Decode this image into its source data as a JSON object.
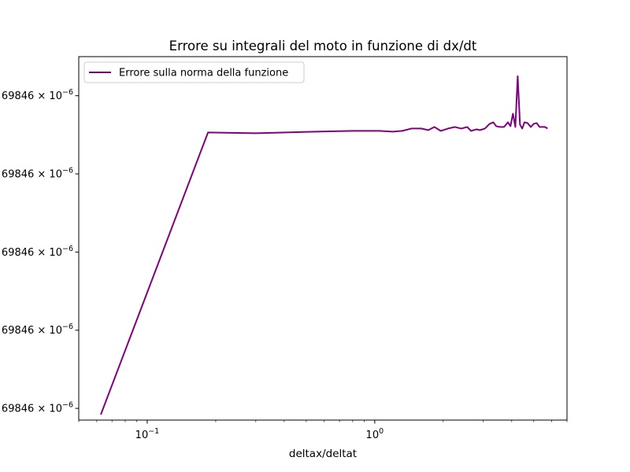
{
  "chart_data": {
    "type": "line",
    "title": "Errore su integrali del moto in funzione di dx/dt",
    "xlabel": "deltax/deltat",
    "ylabel": "",
    "xscale": "log",
    "xlim": [
      0.05,
      7.0
    ],
    "ylim": [
      -0.15,
      4.5
    ],
    "grid": false,
    "legend_position": "top-left",
    "x_ticks": [
      {
        "value": 0.1,
        "base": "10",
        "exp": "−1"
      },
      {
        "value": 1,
        "base": "10",
        "exp": "0"
      }
    ],
    "y_ticks": [
      {
        "value": 0,
        "label": "69846 × 10",
        "exp": "−6"
      },
      {
        "value": 1,
        "label": "69846 × 10",
        "exp": "−6"
      },
      {
        "value": 2,
        "label": "69846 × 10",
        "exp": "−6"
      },
      {
        "value": 3,
        "label": "69846 × 10",
        "exp": "−6"
      },
      {
        "value": 4,
        "label": "69846 × 10",
        "exp": "−6"
      }
    ],
    "series": [
      {
        "name": "Errore sulla norma della funzione",
        "color": "#800080",
        "x": [
          0.0625,
          0.185,
          0.3,
          0.55,
          0.8,
          1.05,
          1.2,
          1.32,
          1.45,
          1.6,
          1.72,
          1.83,
          1.95,
          2.1,
          2.25,
          2.4,
          2.55,
          2.65,
          2.8,
          2.9,
          3.05,
          3.2,
          3.32,
          3.42,
          3.55,
          3.7,
          3.85,
          3.95,
          4.05,
          4.15,
          4.25,
          4.35,
          4.45,
          4.55,
          4.7,
          4.85,
          5.0,
          5.15,
          5.3,
          5.45,
          5.6,
          5.75
        ],
        "y": [
          -0.08,
          3.53,
          3.52,
          3.54,
          3.55,
          3.55,
          3.54,
          3.55,
          3.58,
          3.58,
          3.56,
          3.6,
          3.55,
          3.58,
          3.6,
          3.58,
          3.6,
          3.55,
          3.57,
          3.56,
          3.58,
          3.64,
          3.66,
          3.61,
          3.6,
          3.6,
          3.66,
          3.61,
          3.77,
          3.6,
          4.25,
          3.63,
          3.58,
          3.66,
          3.65,
          3.6,
          3.64,
          3.65,
          3.6,
          3.6,
          3.6,
          3.58
        ]
      }
    ]
  }
}
